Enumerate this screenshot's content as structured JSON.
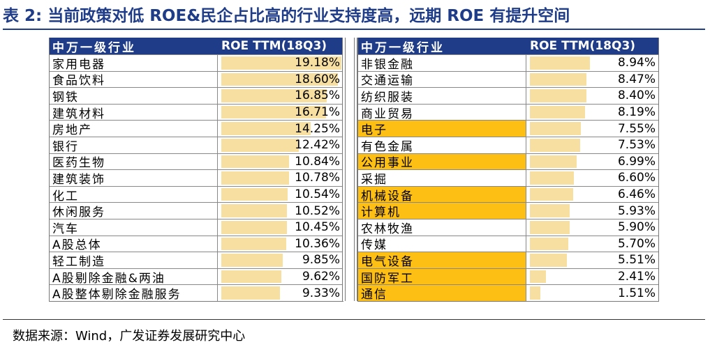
{
  "title": "表 2:  当前政策对低 ROE&民企占比高的行业支持度高，远期 ROE 有提升空间",
  "source": "数据来源：Wind，广发证券发展研究中心",
  "colors": {
    "header_bg": "#1f3c88",
    "highlight": "#fdbf13",
    "bar": "#f6dfa0"
  },
  "left_table": {
    "header_name": "中万一级行业",
    "header_value": "ROE TTM(18Q3)",
    "rows": [
      {
        "name": "家用电器",
        "value": "19.18%",
        "roe": 19.18,
        "highlight": false
      },
      {
        "name": "食品饮料",
        "value": "18.60%",
        "roe": 18.6,
        "highlight": false
      },
      {
        "name": "钢铁",
        "value": "16.85%",
        "roe": 16.85,
        "highlight": false
      },
      {
        "name": "建筑材料",
        "value": "16.71%",
        "roe": 16.71,
        "highlight": false
      },
      {
        "name": "房地产",
        "value": "14.25%",
        "roe": 14.25,
        "highlight": false
      },
      {
        "name": "银行",
        "value": "12.42%",
        "roe": 12.42,
        "highlight": false
      },
      {
        "name": "医药生物",
        "value": "10.84%",
        "roe": 10.84,
        "highlight": false
      },
      {
        "name": "建筑装饰",
        "value": "10.78%",
        "roe": 10.78,
        "highlight": false
      },
      {
        "name": "化工",
        "value": "10.54%",
        "roe": 10.54,
        "highlight": false
      },
      {
        "name": "休闲服务",
        "value": "10.52%",
        "roe": 10.52,
        "highlight": false
      },
      {
        "name": "汽车",
        "value": "10.45%",
        "roe": 10.45,
        "highlight": false
      },
      {
        "name": "A股总体",
        "value": "10.36%",
        "roe": 10.36,
        "highlight": false
      },
      {
        "name": "轻工制造",
        "value": "9.85%",
        "roe": 9.85,
        "highlight": false
      },
      {
        "name": "A股剔除金融&两油",
        "value": "9.62%",
        "roe": 9.62,
        "highlight": false
      },
      {
        "name": "A股整体剔除金融服务",
        "value": "9.33%",
        "roe": 9.33,
        "highlight": false
      }
    ]
  },
  "right_table": {
    "header_name": "中万一级行业",
    "header_value": "ROE TTM(18Q3)",
    "rows": [
      {
        "name": "非银金融",
        "value": "8.94%",
        "roe": 8.94,
        "highlight": false
      },
      {
        "name": "交通运输",
        "value": "8.47%",
        "roe": 8.47,
        "highlight": false
      },
      {
        "name": "纺织服装",
        "value": "8.40%",
        "roe": 8.4,
        "highlight": false
      },
      {
        "name": "商业贸易",
        "value": "8.19%",
        "roe": 8.19,
        "highlight": false
      },
      {
        "name": "电子",
        "value": "7.55%",
        "roe": 7.55,
        "highlight": true
      },
      {
        "name": "有色金属",
        "value": "7.53%",
        "roe": 7.53,
        "highlight": false
      },
      {
        "name": "公用事业",
        "value": "6.99%",
        "roe": 6.99,
        "highlight": true
      },
      {
        "name": "采掘",
        "value": "6.60%",
        "roe": 6.6,
        "highlight": false
      },
      {
        "name": "机械设备",
        "value": "6.46%",
        "roe": 6.46,
        "highlight": true
      },
      {
        "name": "计算机",
        "value": "5.93%",
        "roe": 5.93,
        "highlight": true
      },
      {
        "name": "农林牧渔",
        "value": "5.90%",
        "roe": 5.9,
        "highlight": false
      },
      {
        "name": "传媒",
        "value": "5.70%",
        "roe": 5.7,
        "highlight": false
      },
      {
        "name": "电气设备",
        "value": "5.51%",
        "roe": 5.51,
        "highlight": true
      },
      {
        "name": "国防军工",
        "value": "2.41%",
        "roe": 2.41,
        "highlight": true
      },
      {
        "name": "通信",
        "value": "1.51%",
        "roe": 1.51,
        "highlight": true
      }
    ]
  }
}
